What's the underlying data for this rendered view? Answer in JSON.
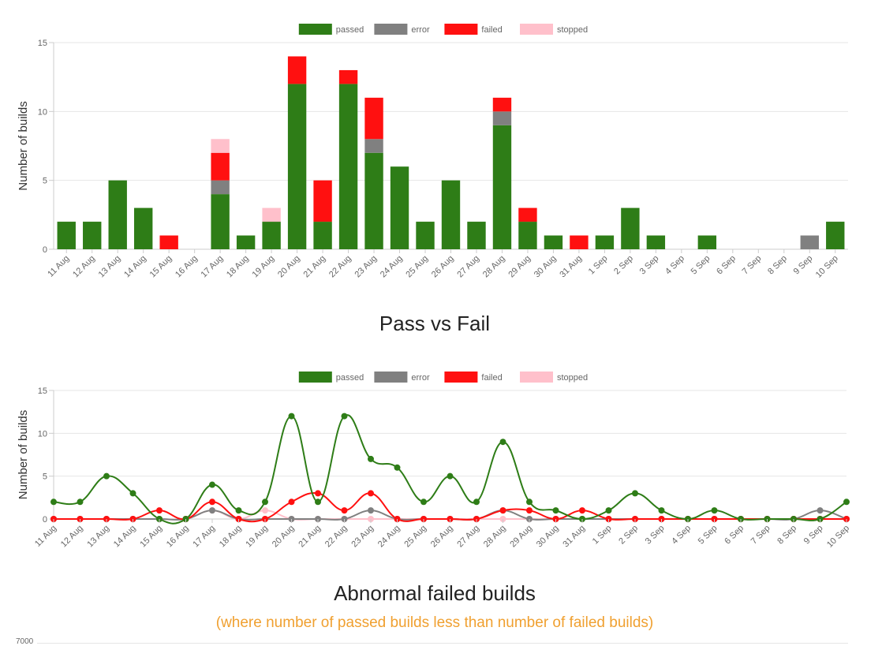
{
  "chart_data": [
    {
      "type": "bar",
      "stacked": true,
      "categories": [
        "11 Aug",
        "12 Aug",
        "13 Aug",
        "14 Aug",
        "15 Aug",
        "16 Aug",
        "17 Aug",
        "18 Aug",
        "19 Aug",
        "20 Aug",
        "21 Aug",
        "22 Aug",
        "23 Aug",
        "24 Aug",
        "25 Aug",
        "26 Aug",
        "27 Aug",
        "28 Aug",
        "29 Aug",
        "30 Aug",
        "31 Aug",
        "1 Sep",
        "2 Sep",
        "3 Sep",
        "4 Sep",
        "5 Sep",
        "6 Sep",
        "7 Sep",
        "8 Sep",
        "9 Sep",
        "10 Sep"
      ],
      "series": [
        {
          "name": "passed",
          "color": "#2e7d17",
          "values": [
            2,
            2,
            5,
            3,
            0,
            0,
            4,
            1,
            2,
            12,
            2,
            12,
            7,
            6,
            2,
            5,
            2,
            9,
            2,
            1,
            0,
            1,
            3,
            1,
            0,
            1,
            0,
            0,
            0,
            0,
            2
          ]
        },
        {
          "name": "error",
          "color": "#808080",
          "values": [
            0,
            0,
            0,
            0,
            0,
            0,
            1,
            0,
            0,
            0,
            0,
            0,
            1,
            0,
            0,
            0,
            0,
            1,
            0,
            0,
            0,
            0,
            0,
            0,
            0,
            0,
            0,
            0,
            0,
            1,
            0
          ]
        },
        {
          "name": "failed",
          "color": "#ff1010",
          "values": [
            0,
            0,
            0,
            0,
            1,
            0,
            2,
            0,
            0,
            2,
            3,
            1,
            3,
            0,
            0,
            0,
            0,
            1,
            1,
            0,
            1,
            0,
            0,
            0,
            0,
            0,
            0,
            0,
            0,
            0,
            0
          ]
        },
        {
          "name": "stopped",
          "color": "#ffc0cb",
          "values": [
            0,
            0,
            0,
            0,
            0,
            0,
            1,
            0,
            1,
            0,
            0,
            0,
            0,
            0,
            0,
            0,
            0,
            0,
            0,
            0,
            0,
            0,
            0,
            0,
            0,
            0,
            0,
            0,
            0,
            0,
            0
          ]
        }
      ],
      "ylabel": "Number of builds",
      "ylim": [
        0,
        15
      ],
      "yticks": [
        0,
        5,
        10,
        15
      ],
      "legend": "top",
      "grid": true,
      "caption": "Pass vs Fail"
    },
    {
      "type": "line",
      "categories": [
        "11 Aug",
        "12 Aug",
        "13 Aug",
        "14 Aug",
        "15 Aug",
        "16 Aug",
        "17 Aug",
        "18 Aug",
        "19 Aug",
        "20 Aug",
        "21 Aug",
        "22 Aug",
        "23 Aug",
        "24 Aug",
        "25 Aug",
        "26 Aug",
        "27 Aug",
        "28 Aug",
        "29 Aug",
        "30 Aug",
        "31 Aug",
        "1 Sep",
        "2 Sep",
        "3 Sep",
        "4 Sep",
        "5 Sep",
        "6 Sep",
        "7 Sep",
        "8 Sep",
        "9 Sep",
        "10 Sep"
      ],
      "series": [
        {
          "name": "passed",
          "color": "#2e7d17",
          "values": [
            2,
            2,
            5,
            3,
            0,
            0,
            4,
            1,
            2,
            12,
            2,
            12,
            7,
            6,
            2,
            5,
            2,
            9,
            2,
            1,
            0,
            1,
            3,
            1,
            0,
            1,
            0,
            0,
            0,
            0,
            2
          ]
        },
        {
          "name": "error",
          "color": "#808080",
          "values": [
            0,
            0,
            0,
            0,
            0,
            0,
            1,
            0,
            0,
            0,
            0,
            0,
            1,
            0,
            0,
            0,
            0,
            1,
            0,
            0,
            0,
            0,
            0,
            0,
            0,
            0,
            0,
            0,
            0,
            1,
            0
          ]
        },
        {
          "name": "failed",
          "color": "#ff1010",
          "values": [
            0,
            0,
            0,
            0,
            1,
            0,
            2,
            0,
            0,
            2,
            3,
            1,
            3,
            0,
            0,
            0,
            0,
            1,
            1,
            0,
            1,
            0,
            0,
            0,
            0,
            0,
            0,
            0,
            0,
            0,
            0
          ]
        },
        {
          "name": "stopped",
          "color": "#ffc0cb",
          "values": [
            0,
            0,
            0,
            0,
            0,
            0,
            1,
            0,
            1,
            0,
            0,
            0,
            0,
            0,
            0,
            0,
            0,
            0,
            0,
            0,
            0,
            0,
            0,
            0,
            0,
            0,
            0,
            0,
            0,
            0,
            0
          ]
        }
      ],
      "ylabel": "Number of builds",
      "ylim": [
        0,
        15
      ],
      "yticks": [
        0,
        5,
        10,
        15
      ],
      "legend": "top",
      "grid": true,
      "caption": "Abnormal failed builds",
      "subcaption": "(where number of passed builds less than number of failed builds)"
    }
  ],
  "next_chart": {
    "top_tick": "7000"
  }
}
